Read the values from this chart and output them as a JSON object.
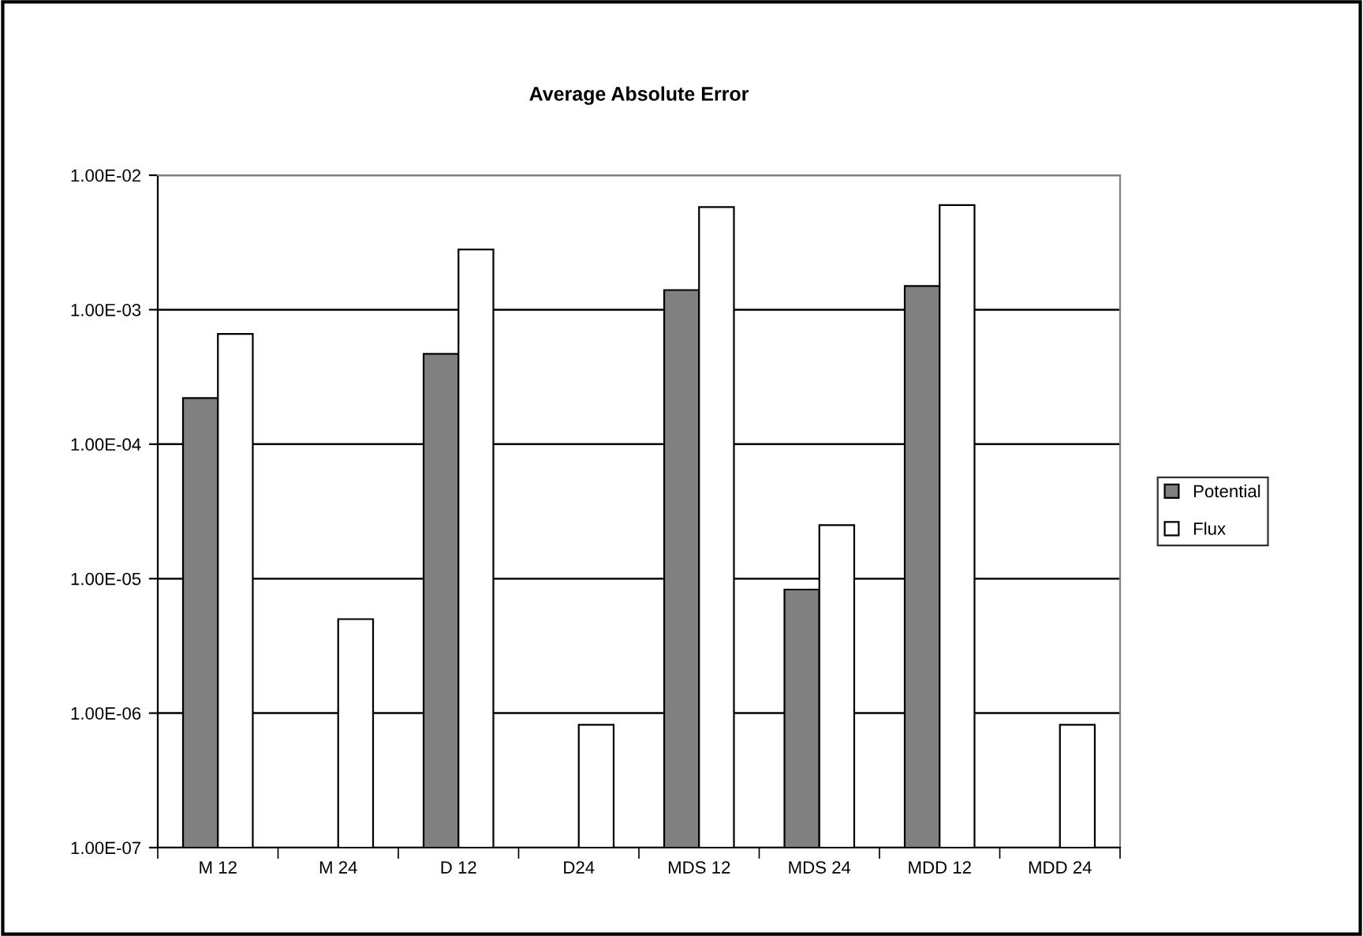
{
  "chart_data": {
    "type": "bar",
    "title": "Average Absolute Error",
    "categories": [
      "M 12",
      "M 24",
      "D 12",
      "D24",
      "MDS 12",
      "MDS 24",
      "MDD 12",
      "MDD 24"
    ],
    "series": [
      {
        "name": "Potential",
        "color": "#808080",
        "values": [
          0.00022,
          null,
          0.00047,
          null,
          0.0014,
          8.3e-06,
          0.0015,
          null
        ]
      },
      {
        "name": "Flux",
        "color": "#ffffff",
        "values": [
          0.00066,
          5e-06,
          0.0028,
          8.2e-07,
          0.0058,
          2.5e-05,
          0.006,
          8.2e-07
        ]
      }
    ],
    "log": true,
    "ylim": [
      1e-07,
      0.01
    ],
    "yticks": [
      {
        "value": 1e-07,
        "label": "1.00E-07"
      },
      {
        "value": 1e-06,
        "label": "1.00E-06"
      },
      {
        "value": 1e-05,
        "label": "1.00E-05"
      },
      {
        "value": 0.0001,
        "label": "1.00E-04"
      },
      {
        "value": 0.001,
        "label": "1.00E-03"
      },
      {
        "value": 0.01,
        "label": "1.00E-02"
      }
    ],
    "grid": "y",
    "legend": "right"
  }
}
